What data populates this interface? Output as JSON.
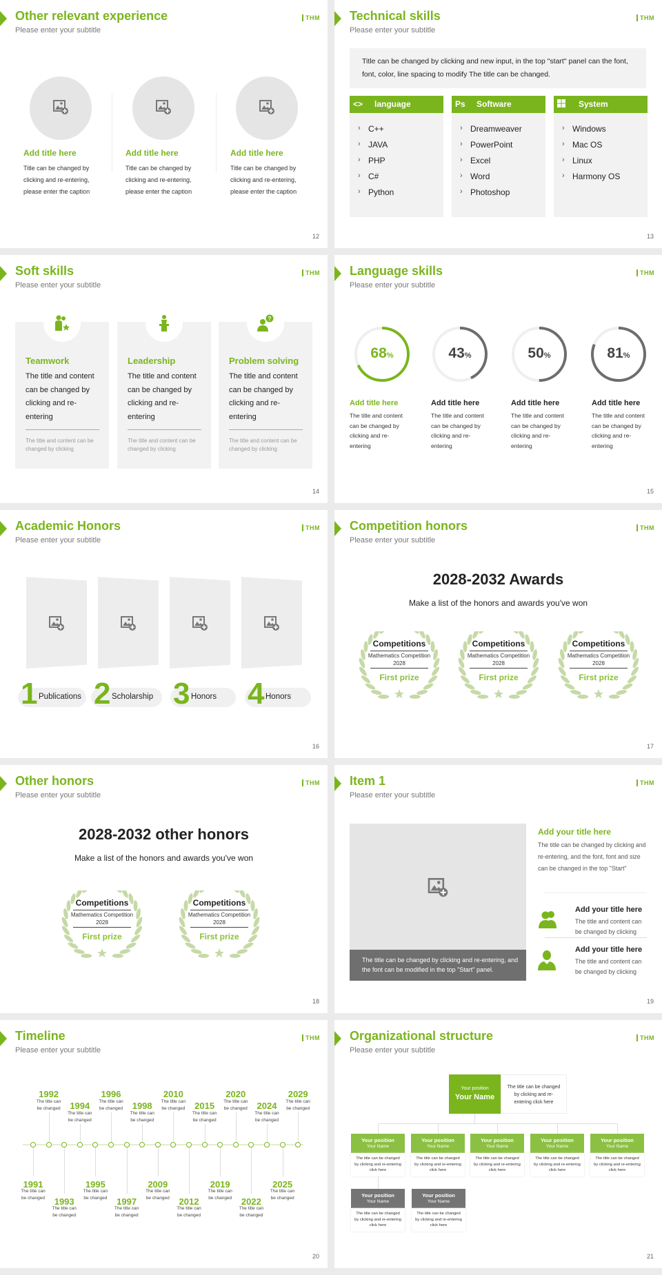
{
  "colors": {
    "accent": "#7ab51d",
    "gray": "#6d6d6d",
    "panel": "#f2f2f2",
    "light_green": "#c6d9a6"
  },
  "logo": "THM",
  "subtitle": "Please enter your subtitle",
  "slides": [
    {
      "page": "12",
      "title": "Other relevant experience",
      "items": [
        {
          "icon": "image-placeholder-icon",
          "title": "Add title here",
          "text": "Title can be changed by clicking and re-entering, please enter the caption"
        },
        {
          "icon": "image-placeholder-icon",
          "title": "Add title here",
          "text": "Title can be changed by clicking and re-entering, please enter the caption"
        },
        {
          "icon": "image-placeholder-icon",
          "title": "Add title here",
          "text": "Title can be changed by clicking and re-entering, please enter the caption"
        }
      ]
    },
    {
      "page": "13",
      "title": "Technical skills",
      "intro": "Title can be changed by clicking and new input, in the top \"start\" panel can the font, font, color, line spacing to modify The title can be changed.",
      "columns": [
        {
          "icon": "code-icon",
          "icon_text": "<>",
          "label": "language",
          "items": [
            "C++",
            "JAVA",
            "PHP",
            "C#",
            "Python"
          ]
        },
        {
          "icon": "photoshop-icon",
          "icon_text": "Ps",
          "label": "Software",
          "items": [
            "Dreamweaver",
            "PowerPoint",
            "Excel",
            "Word",
            "Photoshop"
          ]
        },
        {
          "icon": "windows-icon",
          "icon_text": "",
          "label": "System",
          "items": [
            "Windows",
            "Mac OS",
            "Linux",
            "Harmony OS"
          ]
        }
      ]
    },
    {
      "page": "14",
      "title": "Soft skills",
      "cards": [
        {
          "icon": "teamwork-icon",
          "title": "Teamwork",
          "text": "The title and content can be changed by clicking and re-entering",
          "note": "The title and content can be changed by clicking"
        },
        {
          "icon": "leadership-icon",
          "title": "Leadership",
          "text": "The title and content can be changed by clicking and re-entering",
          "note": "The title and content can be changed by clicking"
        },
        {
          "icon": "problem-solving-icon",
          "title": "Problem solving",
          "text": "The title and content can be changed by clicking and re-entering",
          "note": "The title and content can be changed by clicking"
        }
      ]
    },
    {
      "page": "15",
      "title": "Language skills",
      "items": [
        {
          "percent": 68,
          "value": "68",
          "unit": "%",
          "title": "Add title here",
          "text": "The title and content can be changed by clicking and re-entering",
          "highlight": true
        },
        {
          "percent": 43,
          "value": "43",
          "unit": "%",
          "title": "Add title here",
          "text": "The title and content can be changed by clicking and re-entering",
          "highlight": false
        },
        {
          "percent": 50,
          "value": "50",
          "unit": "%",
          "title": "Add title here",
          "text": "The title and content can be changed by clicking and re-entering",
          "highlight": false
        },
        {
          "percent": 81,
          "value": "81",
          "unit": "%",
          "title": "Add title here",
          "text": "The title and content can be changed by clicking and re-entering",
          "highlight": false
        }
      ]
    },
    {
      "page": "16",
      "title": "Academic Honors",
      "items": [
        {
          "number": "1",
          "label": "Publications"
        },
        {
          "number": "2",
          "label": "Scholarship"
        },
        {
          "number": "3",
          "label": "Honors"
        },
        {
          "number": "4",
          "label": "Honors"
        }
      ]
    },
    {
      "page": "17",
      "title": "Competition honors",
      "heading": "2028-2032 Awards",
      "lead": "Make a list of the honors and awards you've won",
      "awards": [
        {
          "title": "Competitions",
          "event": "Mathematics Competition",
          "year": "2028",
          "prize": "First prize"
        },
        {
          "title": "Competitions",
          "event": "Mathematics Competition",
          "year": "2028",
          "prize": "First prize"
        },
        {
          "title": "Competitions",
          "event": "Mathematics Competition",
          "year": "2028",
          "prize": "First prize"
        }
      ]
    },
    {
      "page": "18",
      "title": "Other honors",
      "heading": "2028-2032 other honors",
      "lead": "Make a list of the honors and awards you've won",
      "awards": [
        {
          "title": "Competitions",
          "event": "Mathematics Competition",
          "year": "2028",
          "prize": "First prize"
        },
        {
          "title": "Competitions",
          "event": "Mathematics Competition",
          "year": "2028",
          "prize": "First prize"
        }
      ]
    },
    {
      "page": "19",
      "title": "Item 1",
      "caption": "The title can be changed by clicking and re-entering, and the font can be modified in the top \"Start\" panel.",
      "main": {
        "title": "Add your title here",
        "text": "The title can be changed by clicking and re-entering, and the font, font and size can be changed in the top \"Start\""
      },
      "points": [
        {
          "icon": "group-icon",
          "title": "Add your title here",
          "text": "The title and content can be changed by clicking"
        },
        {
          "icon": "person-icon",
          "title": "Add your title here",
          "text": "The title and content can be changed by clicking"
        }
      ]
    },
    {
      "page": "20",
      "title": "Timeline",
      "events": [
        {
          "year": "1991",
          "text": "The title can be changed"
        },
        {
          "year": "1992",
          "text": "The title can be changed"
        },
        {
          "year": "1993",
          "text": "The title can be changed"
        },
        {
          "year": "1994",
          "text": "The title can be changed"
        },
        {
          "year": "1995",
          "text": "The title can be changed"
        },
        {
          "year": "1996",
          "text": "The title can be changed"
        },
        {
          "year": "1997",
          "text": "The title can be changed"
        },
        {
          "year": "1998",
          "text": "The title can be changed"
        },
        {
          "year": "2009",
          "text": "The title can be changed"
        },
        {
          "year": "2010",
          "text": "The title can be changed"
        },
        {
          "year": "2012",
          "text": "The title can be changed"
        },
        {
          "year": "2015",
          "text": "The title can be changed"
        },
        {
          "year": "2019",
          "text": "The title can be changed"
        },
        {
          "year": "2020",
          "text": "The title can be changed"
        },
        {
          "year": "2022",
          "text": "The title can be changed"
        },
        {
          "year": "2024",
          "text": "The title can be changed"
        },
        {
          "year": "2025",
          "text": "The title can be changed"
        },
        {
          "year": "2029",
          "text": "The title can be changed"
        }
      ]
    },
    {
      "page": "21",
      "title": "Organizational structure",
      "head": {
        "position": "Your position",
        "name": "Your Name",
        "text": "The title can be changed by clicking and re-entering click here"
      },
      "level1": [
        {
          "position": "Your position",
          "name": "Your Name",
          "text": "The title can be changed by clicking and re-entering click here"
        },
        {
          "position": "Your position",
          "name": "Your Name",
          "text": "The title can be changed by clicking and re-entering click here"
        },
        {
          "position": "Your position",
          "name": "Your Name",
          "text": "The title can be changed by clicking and re-entering click here"
        },
        {
          "position": "Your position",
          "name": "Your Name",
          "text": "The title can be changed by clicking and re-entering click here"
        },
        {
          "position": "Your position",
          "name": "Your Name",
          "text": "The title can be changed by clicking and re-entering click here"
        }
      ],
      "level2": [
        {
          "position": "Your position",
          "name": "Your Name",
          "text": "The title can be changed by clicking and re-entering click here"
        },
        {
          "position": "Your position",
          "name": "Your Name",
          "text": "The title can be changed by clicking and re-entering click here"
        }
      ]
    }
  ]
}
